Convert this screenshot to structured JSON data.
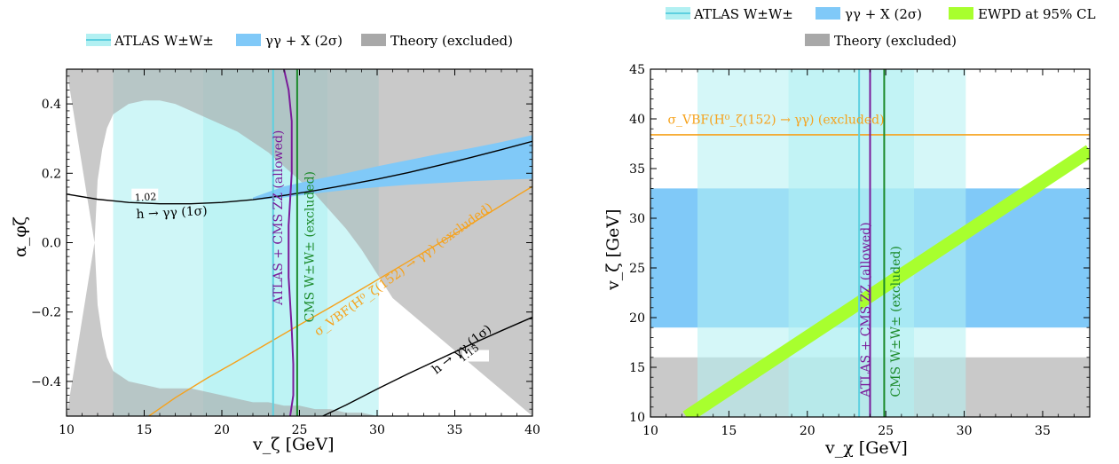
{
  "chart_data": [
    {
      "type": "area",
      "title": "",
      "xlabel": "v_ζ [GeV]",
      "ylabel": "α_φζ",
      "xlim": [
        10,
        40
      ],
      "ylim": [
        -0.5,
        0.5
      ],
      "xticks": [
        "10",
        "15",
        "20",
        "25",
        "30",
        "35",
        "40"
      ],
      "yticks": [
        "−0.4",
        "−0.2",
        "0.0",
        "0.2",
        "0.4"
      ],
      "legend": {
        "placement": "top-center",
        "entries": [
          "ATLAS W±W±",
          "γγ + X (2σ)",
          "Theory (excluded)"
        ]
      },
      "bands": [
        {
          "name": "ATLAS W±W±",
          "x_ranges": [
            [
              13.0,
              30.1
            ],
            [
              18.8,
              26.8
            ]
          ],
          "color": "#b2f0f2"
        },
        {
          "name": "Theory (excluded)",
          "color": "#a8a8a8"
        }
      ],
      "theory_boundary": {
        "x": [
          11.8,
          12.0,
          12.3,
          12.6,
          13.0,
          14.0,
          15.0,
          16.0,
          17.0,
          18.0,
          19.0,
          20.0,
          21.0,
          22.0,
          23.0,
          24.0,
          25.0,
          26.0,
          27.0,
          28.0,
          29.0,
          30.0,
          31.0
        ],
        "alpha_upper": [
          0.0,
          0.18,
          0.27,
          0.33,
          0.37,
          0.4,
          0.41,
          0.41,
          0.4,
          0.38,
          0.36,
          0.34,
          0.32,
          0.29,
          0.26,
          0.22,
          0.18,
          0.14,
          0.09,
          0.04,
          -0.02,
          -0.09,
          -0.16
        ],
        "alpha_lower": [
          0.0,
          -0.18,
          -0.27,
          -0.33,
          -0.37,
          -0.4,
          -0.41,
          -0.42,
          -0.42,
          -0.42,
          -0.43,
          -0.44,
          -0.45,
          -0.46,
          -0.46,
          -0.47,
          -0.47,
          -0.48,
          -0.48,
          -0.49,
          -0.49,
          -0.5,
          -0.5
        ]
      },
      "gamma_band": {
        "name": "γγ + X (2σ)",
        "x": [
          22.0,
          24.0,
          26.0,
          28.0,
          30.0,
          32.0,
          34.0,
          36.0,
          38.0,
          40.0
        ],
        "upper": [
          0.13,
          0.162,
          0.182,
          0.2,
          0.22,
          0.238,
          0.256,
          0.272,
          0.29,
          0.31
        ],
        "lower": [
          0.122,
          0.13,
          0.142,
          0.152,
          0.16,
          0.167,
          0.172,
          0.177,
          0.181,
          0.184
        ],
        "color": "#80c9f8"
      },
      "series": [
        {
          "name": "1.02",
          "x": [
            10,
            12,
            14,
            16,
            18,
            20,
            22,
            24,
            26,
            28,
            30,
            32,
            34,
            36,
            38,
            40
          ],
          "y": [
            0.14,
            0.125,
            0.116,
            0.112,
            0.112,
            0.116,
            0.124,
            0.136,
            0.15,
            0.166,
            0.183,
            0.202,
            0.223,
            0.245,
            0.268,
            0.292
          ],
          "color": "#000000"
        },
        {
          "name": "1.15",
          "x": [
            26.5,
            28,
            30,
            32,
            34,
            36,
            38,
            40
          ],
          "y": [
            -0.5,
            -0.468,
            -0.422,
            -0.378,
            -0.336,
            -0.294,
            -0.254,
            -0.215
          ],
          "color": "#000000"
        },
        {
          "name": "σ_VBF(H⁰_ζ(152) → γγ) (excluded)",
          "x": [
            15.3,
            17,
            19,
            21,
            23,
            25,
            27,
            29,
            31,
            33,
            35,
            37,
            39,
            40
          ],
          "y": [
            -0.5,
            -0.447,
            -0.392,
            -0.341,
            -0.289,
            -0.237,
            -0.186,
            -0.134,
            -0.081,
            -0.028,
            0.025,
            0.08,
            0.135,
            0.162
          ],
          "color": "#f6a21c"
        },
        {
          "name": "ATLAS + CMS ZZ (allowed)",
          "x": [
            24.0,
            24.3,
            24.5,
            24.5,
            24.3,
            24.3,
            24.5,
            24.6,
            24.6,
            24.4
          ],
          "y": [
            0.5,
            0.44,
            0.35,
            0.2,
            0.05,
            -0.1,
            -0.25,
            -0.35,
            -0.44,
            -0.5
          ],
          "color": "#7a1b9a"
        }
      ],
      "vlines": [
        {
          "name": "ATLAS W±W±",
          "x": 23.3,
          "color": "#5ed0e0"
        },
        {
          "name": "CMS W±W± (excluded)",
          "x": 24.85,
          "color": "#1b8a2a"
        }
      ],
      "annotations": {
        "h_upper": "h → γγ (1σ)",
        "h_lower": "h → γγ (1σ)",
        "label_102": "1.02",
        "label_115": "1.15",
        "zz": "ATLAS + CMS ZZ (allowed)",
        "cms": "CMS W±W± (excluded)",
        "vbf": "σ_VBF(H⁰_ζ(152) → γγ) (excluded)"
      }
    },
    {
      "type": "area",
      "title": "",
      "xlabel": "v_χ [GeV]",
      "ylabel": "v_ζ [GeV]",
      "xlim": [
        10,
        38
      ],
      "ylim": [
        10,
        45
      ],
      "xticks": [
        "10",
        "15",
        "20",
        "25",
        "30",
        "35"
      ],
      "yticks": [
        "10",
        "15",
        "20",
        "25",
        "30",
        "35",
        "40",
        "45"
      ],
      "legend": {
        "placement": "top-center",
        "entries": [
          "ATLAS W±W±",
          "γγ + X (2σ)",
          "EWPD at 95% CL",
          "Theory (excluded)"
        ]
      },
      "bands": [
        {
          "name": "ATLAS W±W±",
          "x_ranges": [
            [
              13.0,
              30.1
            ],
            [
              18.8,
              26.8
            ]
          ],
          "color": "#b2f0f2"
        },
        {
          "name": "γγ + X (2σ)",
          "y_range": [
            19.0,
            33.0
          ],
          "color": "#80c9f8"
        },
        {
          "name": "Theory (excluded)",
          "y_range": [
            10.0,
            16.0
          ],
          "color": "#a8a8a8"
        }
      ],
      "series": [
        {
          "name": "EWPD at 95% CL",
          "x": [
            12.3,
            38.0
          ],
          "y": [
            10.0,
            36.8
          ],
          "color": "#a8ff2e"
        }
      ],
      "hlines": [
        {
          "name": "σ_VBF(H⁰_ζ(152) → γγ) (excluded)",
          "y": 38.4,
          "color": "#f6a21c"
        }
      ],
      "vlines": [
        {
          "name": "ATLAS W±W±",
          "x": 23.3,
          "color": "#5ed0e0"
        },
        {
          "name": "ATLAS + CMS ZZ (allowed)",
          "x": 24.0,
          "color": "#7a1b9a"
        },
        {
          "name": "CMS W±W± (excluded)",
          "x": 24.9,
          "color": "#1b8a2a"
        }
      ],
      "annotations": {
        "vbf": "σ_VBF(H⁰_ζ(152) → γγ) (excluded)",
        "zz": "ATLAS + CMS ZZ (allowed)",
        "cms": "CMS W±W± (excluded)"
      }
    }
  ]
}
